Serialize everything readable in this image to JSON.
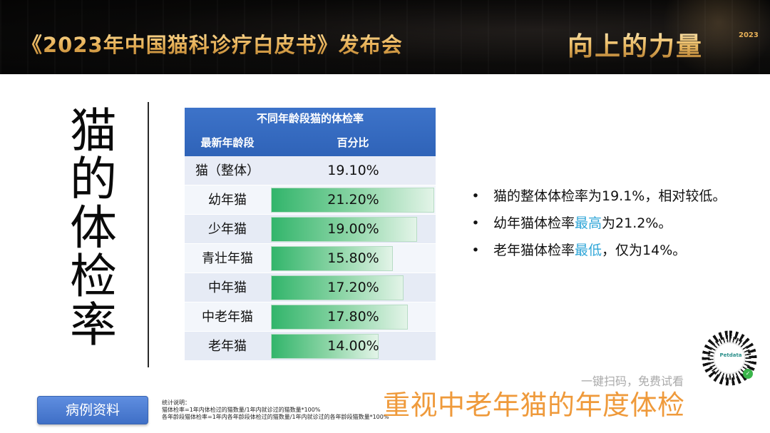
{
  "header": {
    "title": "《2023年中国猫科诊疗白皮书》发布会",
    "slogan": "向上的力量",
    "year": "2023"
  },
  "vertical_title": [
    "猫",
    "的",
    "体",
    "检",
    "率"
  ],
  "chart_data": {
    "type": "table",
    "title": "不同年龄段猫的体检率",
    "columns": [
      "最新年龄段",
      "百分比"
    ],
    "overall": {
      "label": "猫（整体）",
      "value": 19.1,
      "value_text": "19.10%"
    },
    "rows": [
      {
        "label": "幼年猫",
        "value": 21.2,
        "value_text": "21.20%"
      },
      {
        "label": "少年猫",
        "value": 19.0,
        "value_text": "19.00%"
      },
      {
        "label": "青壮年猫",
        "value": 15.8,
        "value_text": "15.80%"
      },
      {
        "label": "中年猫",
        "value": 17.2,
        "value_text": "17.20%"
      },
      {
        "label": "中老年猫",
        "value": 17.8,
        "value_text": "17.80%"
      },
      {
        "label": "老年猫",
        "value": 14.0,
        "value_text": "14.00%"
      }
    ],
    "bar_color": "#32b56b"
  },
  "bullets": [
    {
      "pre": "猫的整体体检率为19.1%，相对较低。",
      "hl": "",
      "post": ""
    },
    {
      "pre": "幼年猫体检率",
      "hl": "最高",
      "post": "为21.2%。"
    },
    {
      "pre": "老年猫体检率",
      "hl": "最低",
      "post": "，仅为14%。"
    }
  ],
  "qr": {
    "brand": "Petdata",
    "caption": "一键扫码，免费试看"
  },
  "footer": {
    "case_button": "病例资料",
    "notes": [
      "统计说明：",
      "猫体检率=1年内体检过的猫数量/1年内就诊过的猫数量*100%",
      "各年龄段猫体检率=1年内各年龄段体检过的猫数量/1年内就诊过的各年龄段猫数量*100%"
    ],
    "emphasis": "重视中老年猫的年度体检"
  },
  "colors": {
    "header_blue": "#2f63b8",
    "highlight": "#2fa6d8",
    "emphasis": "#ef9a3b"
  }
}
